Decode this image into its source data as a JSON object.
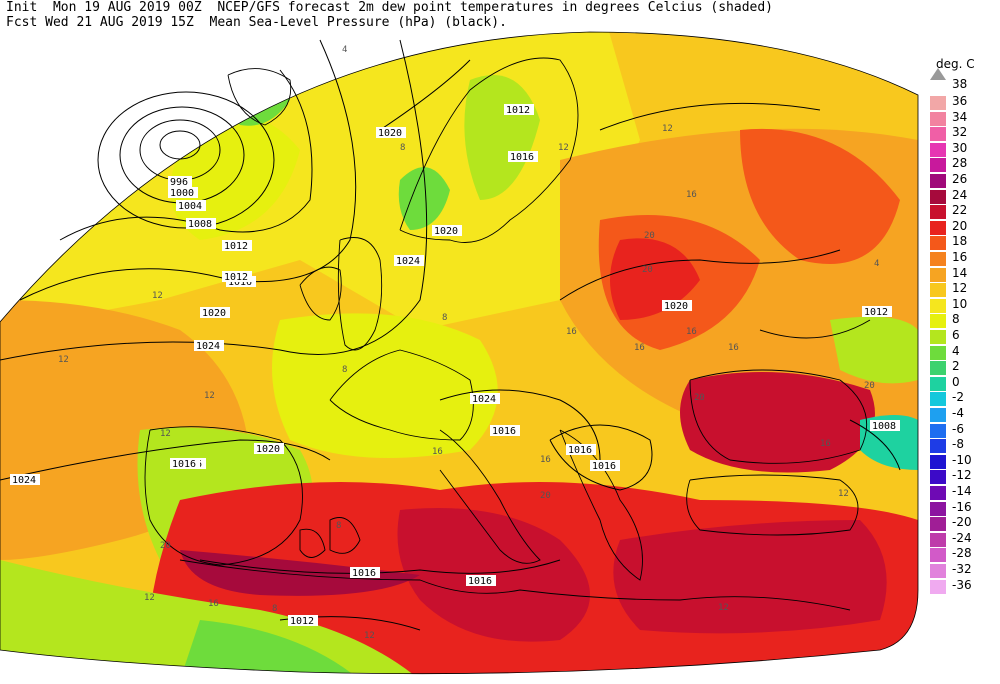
{
  "header": {
    "line1": "Init  Mon 19 AUG 2019 00Z  NCEP/GFS forecast 2m dew point temperatures in degrees Celcius (shaded)",
    "line2": "Fcst Wed 21 AUG 2019 15Z  Mean Sea-Level Pressure (hPa) (black)."
  },
  "legend": {
    "unit": "deg. C",
    "top_label": "38",
    "items": [
      {
        "label": "36",
        "color": "#f2a7a7"
      },
      {
        "label": "34",
        "color": "#f283a0"
      },
      {
        "label": "32",
        "color": "#f05fa6"
      },
      {
        "label": "30",
        "color": "#e636b2"
      },
      {
        "label": "28",
        "color": "#c8199c"
      },
      {
        "label": "26",
        "color": "#a0097a"
      },
      {
        "label": "24",
        "color": "#a60a3c"
      },
      {
        "label": "22",
        "color": "#c8102e"
      },
      {
        "label": "20",
        "color": "#e8231e"
      },
      {
        "label": "18",
        "color": "#f4581a"
      },
      {
        "label": "16",
        "color": "#f5821e"
      },
      {
        "label": "14",
        "color": "#f6a422"
      },
      {
        "label": "12",
        "color": "#f8c81e"
      },
      {
        "label": "10",
        "color": "#f5e61e"
      },
      {
        "label": "8",
        "color": "#e6f00f"
      },
      {
        "label": "6",
        "color": "#b4e61e"
      },
      {
        "label": "4",
        "color": "#6edc3c"
      },
      {
        "label": "2",
        "color": "#3cd26e"
      },
      {
        "label": "0",
        "color": "#1ed2a0"
      },
      {
        "label": "-2",
        "color": "#14c8dc"
      },
      {
        "label": "-4",
        "color": "#1ea0f0"
      },
      {
        "label": "-6",
        "color": "#1e6ef0"
      },
      {
        "label": "-8",
        "color": "#1e3ce6"
      },
      {
        "label": "-10",
        "color": "#1e14d2"
      },
      {
        "label": "-12",
        "color": "#3c0ac8"
      },
      {
        "label": "-14",
        "color": "#6e0ab4"
      },
      {
        "label": "-16",
        "color": "#8c14a0"
      },
      {
        "label": "-20",
        "color": "#a01e96"
      },
      {
        "label": "-24",
        "color": "#be3caa"
      },
      {
        "label": "-28",
        "color": "#d25ac8"
      },
      {
        "label": "-32",
        "color": "#e182dc"
      },
      {
        "label": "-36",
        "color": "#f0aaf0"
      }
    ]
  },
  "isobar_labels": [
    "996",
    "1000",
    "1004",
    "1008",
    "1012",
    "1016",
    "1020",
    "1024",
    "1012",
    "1016",
    "1020",
    "1024",
    "1020",
    "1016",
    "1016",
    "1012",
    "1008",
    "1020",
    "1016",
    "1024",
    "1012",
    "1024",
    "1016",
    "1016",
    "1012",
    "1016",
    "1016",
    "1020"
  ],
  "dewpoint_labels": [
    "4",
    "8",
    "12",
    "12",
    "16",
    "16",
    "20",
    "20",
    "16",
    "16",
    "12",
    "8",
    "12",
    "8",
    "12",
    "16",
    "20",
    "20",
    "16",
    "12",
    "12",
    "16",
    "8",
    "12",
    "16",
    "20",
    "8",
    "12",
    "16",
    "12",
    "20",
    "4"
  ]
}
